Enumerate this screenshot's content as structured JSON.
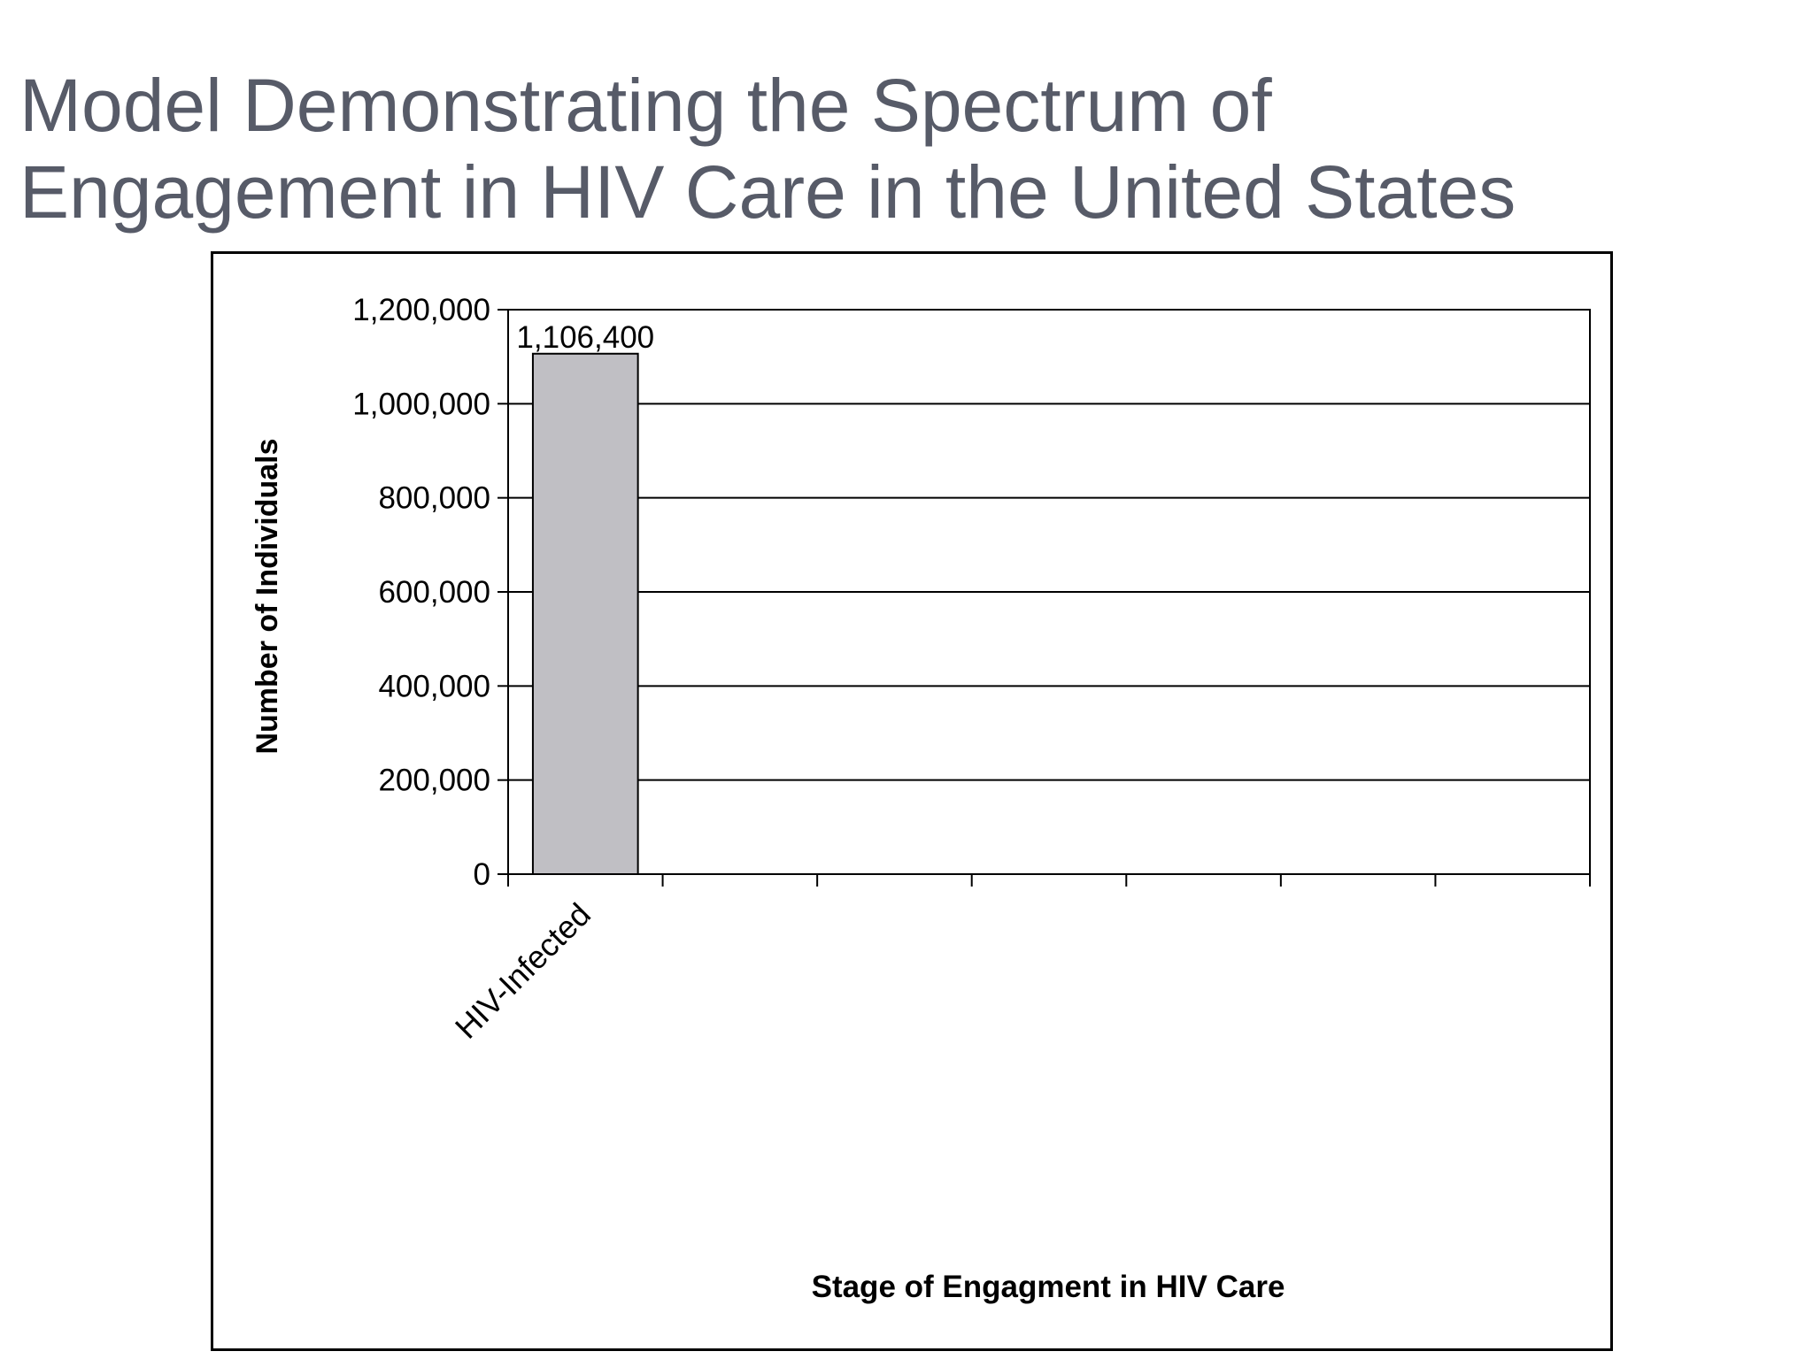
{
  "slide": {
    "title_line1": "Model Demonstrating the Spectrum of",
    "title_line2": "Engagement in HIV Care in the United States"
  },
  "chart_data": {
    "type": "bar",
    "categories": [
      "HIV-Infected",
      "",
      "",
      "",
      "",
      "",
      ""
    ],
    "values": [
      1106400,
      null,
      null,
      null,
      null,
      null,
      null
    ],
    "data_labels": [
      "1,106,400",
      "",
      "",
      "",
      "",
      "",
      ""
    ],
    "xlabel": "Stage of Engagment in HIV Care",
    "ylabel": "Number of Individuals",
    "ylim": [
      0,
      1200000
    ],
    "yticks": [
      0,
      200000,
      400000,
      600000,
      800000,
      1000000,
      1200000
    ],
    "ytick_labels": [
      "0",
      "200,000",
      "400,000",
      "600,000",
      "800,000",
      "1,000,000",
      "1,200,000"
    ],
    "grid": true,
    "legend": "none",
    "colors": {
      "bar_fill": "#c0bfc4",
      "bar_stroke": "#000000",
      "gridline": "#000000",
      "faded_gridline": "#bdbdbd"
    }
  }
}
